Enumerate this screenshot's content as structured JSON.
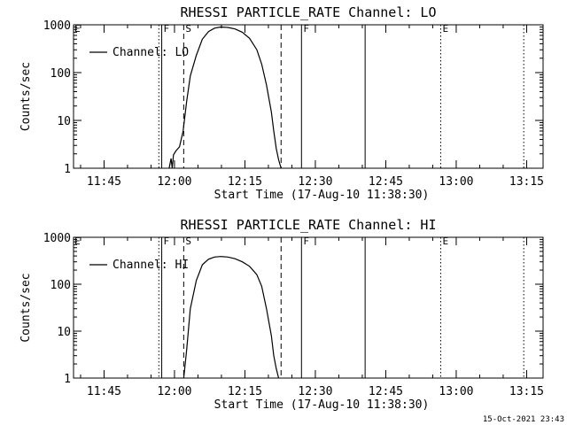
{
  "chart_data": [
    {
      "type": "line",
      "title": "RHESSI PARTICLE_RATE Channel: LO",
      "xlabel": "Start Time (17-Aug-10 11:38:30)",
      "ylabel": "Counts/sec",
      "yscale": "log",
      "ylim": [
        1,
        1000
      ],
      "xlim": [
        "11:38:30",
        "13:18:30"
      ],
      "xticks": [
        "11:45",
        "12:00",
        "12:15",
        "12:30",
        "12:45",
        "13:00",
        "13:15"
      ],
      "yticks": [
        "1",
        "10",
        "100",
        "1000"
      ],
      "grid": false,
      "legend": {
        "position": "top-left",
        "entries": [
          "Channel: LO"
        ]
      },
      "series": [
        {
          "name": "Channel: LO",
          "x": [
            "11:58:51",
            "11:59:16",
            "11:59:31",
            "11:59:47",
            "12:00:18",
            "12:01:04",
            "12:01:50",
            "12:02:36",
            "12:03:22",
            "12:04:39",
            "12:05:56",
            "12:07:14",
            "12:08:31",
            "12:09:49",
            "12:11:22",
            "12:12:54",
            "12:14:27",
            "12:15:59",
            "12:17:32",
            "12:18:34",
            "12:19:36",
            "12:20:38",
            "12:21:09",
            "12:21:40",
            "12:22:11",
            "12:22:42"
          ],
          "values": [
            1.0,
            1.6,
            1.0,
            1.9,
            2.3,
            2.8,
            6.0,
            25,
            85,
            230,
            500,
            720,
            850,
            900,
            880,
            820,
            700,
            520,
            300,
            150,
            55,
            15,
            6.0,
            2.6,
            1.5,
            1.0
          ]
        }
      ],
      "markers": [
        {
          "label": "F",
          "time": "11:57:17",
          "style": "solid"
        },
        {
          "label": "S",
          "time": "12:01:58",
          "style": "dashed"
        },
        {
          "label": "",
          "time": "12:22:42",
          "style": "dashed"
        },
        {
          "label": "F",
          "time": "12:27:03",
          "style": "solid"
        },
        {
          "label": "",
          "time": "12:40:36",
          "style": "solid"
        },
        {
          "label": "E",
          "time": "12:56:42",
          "style": "dotted"
        },
        {
          "label": "",
          "time": "13:14:23",
          "style": "dotted"
        },
        {
          "label": "",
          "time": "11:56:40",
          "style": "dotted"
        }
      ]
    },
    {
      "type": "line",
      "title": "RHESSI PARTICLE_RATE Channel: HI",
      "xlabel": "Start Time (17-Aug-10 11:38:30)",
      "ylabel": "Counts/sec",
      "yscale": "log",
      "ylim": [
        1,
        1000
      ],
      "xlim": [
        "11:38:30",
        "13:18:30"
      ],
      "xticks": [
        "11:45",
        "12:00",
        "12:15",
        "12:30",
        "12:45",
        "13:00",
        "13:15"
      ],
      "yticks": [
        "1",
        "10",
        "100",
        "1000"
      ],
      "grid": false,
      "legend": {
        "position": "top-left",
        "entries": [
          "Channel: HI"
        ]
      },
      "series": [
        {
          "name": "Channel: HI",
          "x": [
            "12:01:58",
            "12:02:36",
            "12:03:22",
            "12:04:39",
            "12:05:56",
            "12:07:14",
            "12:08:31",
            "12:09:49",
            "12:11:22",
            "12:12:54",
            "12:14:27",
            "12:15:59",
            "12:17:32",
            "12:18:34",
            "12:19:36",
            "12:20:38",
            "12:21:09",
            "12:21:40",
            "12:22:11"
          ],
          "values": [
            1.0,
            4.0,
            30,
            120,
            260,
            340,
            380,
            390,
            380,
            350,
            300,
            240,
            160,
            90,
            30,
            8.0,
            3.0,
            1.6,
            1.0
          ]
        }
      ],
      "markers": [
        {
          "label": "F",
          "time": "11:57:17",
          "style": "solid"
        },
        {
          "label": "S",
          "time": "12:01:58",
          "style": "dashed"
        },
        {
          "label": "",
          "time": "12:22:42",
          "style": "dashed"
        },
        {
          "label": "F",
          "time": "12:27:03",
          "style": "solid"
        },
        {
          "label": "",
          "time": "12:40:36",
          "style": "solid"
        },
        {
          "label": "E",
          "time": "12:56:42",
          "style": "dotted"
        },
        {
          "label": "",
          "time": "13:14:23",
          "style": "dotted"
        },
        {
          "label": "",
          "time": "11:56:40",
          "style": "dotted"
        }
      ]
    }
  ],
  "footer": {
    "timestamp": "15-Oct-2021 23:43"
  }
}
